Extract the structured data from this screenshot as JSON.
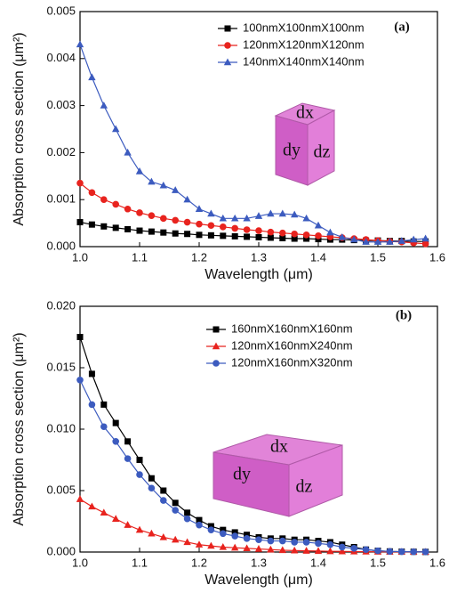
{
  "chart_data": [
    {
      "type": "line",
      "panel_label": "(a)",
      "xlabel": "Wavelength (μm)",
      "ylabel": "Absorption cross section (μm²)",
      "xlim": [
        1,
        1.6
      ],
      "ylim": [
        0,
        0.005
      ],
      "xticks": [
        {
          "value": 1,
          "label": "1.0"
        },
        1.1,
        1.2,
        1.3,
        1.4,
        1.5,
        1.6
      ],
      "yticks": [
        {
          "value": 0,
          "label": "0.000"
        },
        0.001,
        0.002,
        0.003,
        0.004,
        0.005
      ],
      "annotations": [
        "dx",
        "dy",
        "dz"
      ],
      "x": [
        1.0,
        1.02,
        1.04,
        1.06,
        1.08,
        1.1,
        1.12,
        1.14,
        1.16,
        1.18,
        1.2,
        1.22,
        1.24,
        1.26,
        1.28,
        1.3,
        1.32,
        1.34,
        1.36,
        1.38,
        1.4,
        1.42,
        1.44,
        1.46,
        1.48,
        1.5,
        1.52,
        1.54,
        1.56,
        1.58
      ],
      "series": [
        {
          "name": "100nmX100nmX100nm",
          "color": "#000000",
          "marker": "square",
          "values": [
            0.00052,
            0.00047,
            0.00043,
            0.0004,
            0.00037,
            0.00034,
            0.00032,
            0.0003,
            0.00028,
            0.00027,
            0.00025,
            0.00024,
            0.00023,
            0.00022,
            0.00021,
            0.0002,
            0.00019,
            0.00018,
            0.00017,
            0.00017,
            0.00016,
            0.00015,
            0.00015,
            0.00014,
            0.00013,
            0.00013,
            0.00012,
            0.00012,
            0.00011,
            0.00011
          ]
        },
        {
          "name": "120nmX120nmX120nm",
          "color": "#e8231e",
          "marker": "circle",
          "values": [
            0.00135,
            0.00115,
            0.001,
            0.0009,
            0.0008,
            0.00072,
            0.00066,
            0.0006,
            0.00056,
            0.00052,
            0.00048,
            0.00045,
            0.00042,
            0.00039,
            0.00036,
            0.00034,
            0.00031,
            0.00029,
            0.00027,
            0.00025,
            0.00023,
            0.00021,
            0.00019,
            0.00017,
            0.00015,
            0.00013,
            0.00011,
            0.0001,
            8e-05,
            6e-05
          ]
        },
        {
          "name": "140nmX140nmX140nm",
          "color": "#3c5bbf",
          "marker": "triangle",
          "values": [
            0.0043,
            0.0036,
            0.003,
            0.0025,
            0.002,
            0.0016,
            0.00138,
            0.0013,
            0.0012,
            0.001,
            0.0008,
            0.0007,
            0.0006,
            0.0006,
            0.0006,
            0.00065,
            0.0007,
            0.0007,
            0.00068,
            0.0006,
            0.00045,
            0.0003,
            0.0002,
            0.00015,
            0.0001,
            0.0001,
            0.0001,
            0.00012,
            0.00015,
            0.00017
          ]
        }
      ]
    },
    {
      "type": "line",
      "panel_label": "(b)",
      "xlabel": "Wavelength (μm)",
      "ylabel": "Absorption cross section (μm²)",
      "xlim": [
        1,
        1.6
      ],
      "ylim": [
        0,
        0.02
      ],
      "xticks": [
        {
          "value": 1,
          "label": "1.0"
        },
        1.1,
        1.2,
        1.3,
        1.4,
        1.5,
        1.6
      ],
      "yticks": [
        {
          "value": 0,
          "label": "0.000"
        },
        {
          "value": 0.005,
          "label": "0.005"
        },
        {
          "value": 0.01,
          "label": "0.010"
        },
        {
          "value": 0.015,
          "label": "0.015"
        },
        {
          "value": 0.02,
          "label": "0.020"
        }
      ],
      "annotations": [
        "dx",
        "dy",
        "dz"
      ],
      "x": [
        1.0,
        1.02,
        1.04,
        1.06,
        1.08,
        1.1,
        1.12,
        1.14,
        1.16,
        1.18,
        1.2,
        1.22,
        1.24,
        1.26,
        1.28,
        1.3,
        1.32,
        1.34,
        1.36,
        1.38,
        1.4,
        1.42,
        1.44,
        1.46,
        1.48,
        1.5,
        1.52,
        1.54,
        1.56,
        1.58
      ],
      "series": [
        {
          "name": "160nmX160nmX160nm",
          "color": "#000000",
          "marker": "square",
          "values": [
            0.0175,
            0.0145,
            0.012,
            0.0105,
            0.009,
            0.0075,
            0.006,
            0.005,
            0.004,
            0.0032,
            0.0026,
            0.0021,
            0.0018,
            0.0016,
            0.0014,
            0.0012,
            0.0011,
            0.0011,
            0.001,
            0.001,
            0.0009,
            0.0008,
            0.0006,
            0.0004,
            0.0002,
            0.0001,
            5e-05,
            3e-05,
            2e-05,
            1e-05
          ]
        },
        {
          "name": "120nmX160nmX240nm",
          "color": "#e8231e",
          "marker": "triangle",
          "values": [
            0.0043,
            0.0037,
            0.0032,
            0.0027,
            0.0022,
            0.0018,
            0.0015,
            0.0012,
            0.001,
            0.0008,
            0.0006,
            0.0005,
            0.0004,
            0.00035,
            0.0003,
            0.00025,
            0.0002,
            0.00015,
            0.00012,
            0.0001,
            8e-05,
            6e-05,
            5e-05,
            4e-05,
            3e-05,
            2e-05,
            2e-05,
            1e-05,
            1e-05,
            1e-05
          ]
        },
        {
          "name": "120nmX160nmX320nm",
          "color": "#3c5bbf",
          "marker": "circle",
          "values": [
            0.014,
            0.012,
            0.0102,
            0.009,
            0.0076,
            0.0063,
            0.0052,
            0.0042,
            0.0034,
            0.0027,
            0.0022,
            0.0018,
            0.0015,
            0.0013,
            0.0011,
            0.001,
            0.0009,
            0.0009,
            0.0008,
            0.0008,
            0.0007,
            0.0006,
            0.0004,
            0.0003,
            0.0002,
            0.0001,
            5e-05,
            3e-05,
            2e-05,
            1e-05
          ]
        }
      ]
    }
  ]
}
